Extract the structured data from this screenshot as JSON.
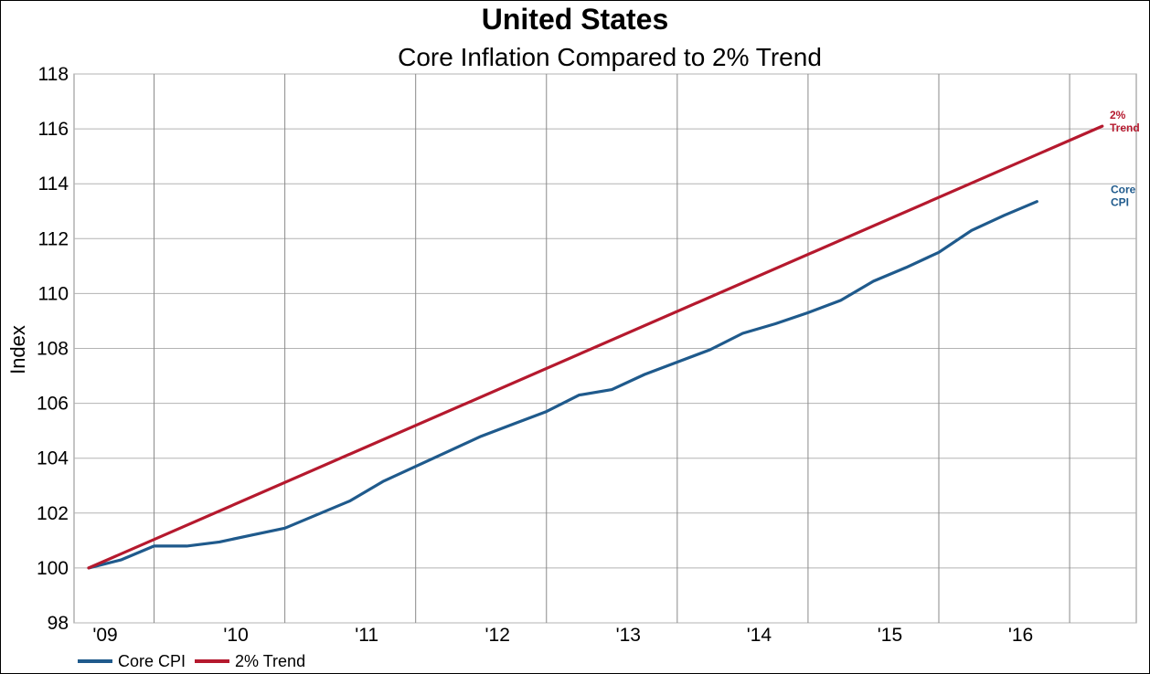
{
  "chart_data": {
    "type": "line",
    "title": "United States",
    "subtitle": "Core Inflation Compared to 2% Trend",
    "xlabel": "",
    "ylabel": "Index",
    "x_tick_labels": [
      "'09",
      "'10",
      "'11",
      "'12",
      "'13",
      "'14",
      "'15",
      "'16"
    ],
    "x_tick_years": [
      2009,
      2010,
      2011,
      2012,
      2013,
      2014,
      2015,
      2016
    ],
    "xlim": [
      2009.0,
      2016.8
    ],
    "ylim": [
      98,
      118
    ],
    "y_ticks": [
      98,
      100,
      102,
      104,
      106,
      108,
      110,
      112,
      114,
      116,
      118
    ],
    "grid": true,
    "legend_position": "bottom-left",
    "series": [
      {
        "name": "Core CPI",
        "color": "#1f5a8c",
        "end_label": [
          "Core",
          "CPI"
        ],
        "x": [
          2009.0,
          2009.25,
          2009.5,
          2009.75,
          2010.0,
          2010.25,
          2010.5,
          2010.75,
          2011.0,
          2011.25,
          2011.5,
          2011.75,
          2012.0,
          2012.25,
          2012.5,
          2012.75,
          2013.0,
          2013.25,
          2013.5,
          2013.75,
          2014.0,
          2014.25,
          2014.5,
          2014.75,
          2015.0,
          2015.25,
          2015.5,
          2015.75,
          2016.0,
          2016.25
        ],
        "y": [
          100.0,
          100.3,
          100.8,
          100.8,
          100.95,
          101.2,
          101.45,
          101.95,
          102.45,
          103.15,
          103.7,
          104.25,
          104.8,
          105.25,
          105.7,
          106.3,
          106.5,
          107.05,
          107.5,
          107.95,
          108.55,
          108.9,
          109.3,
          109.75,
          110.45,
          110.95,
          111.5,
          112.3,
          112.85,
          113.35
        ]
      },
      {
        "name": "2% Trend",
        "color": "#b5192e",
        "end_label": [
          "2%",
          "Trend"
        ],
        "x": [
          2009.0,
          2016.75
        ],
        "y": [
          100.0,
          116.1
        ]
      }
    ]
  }
}
